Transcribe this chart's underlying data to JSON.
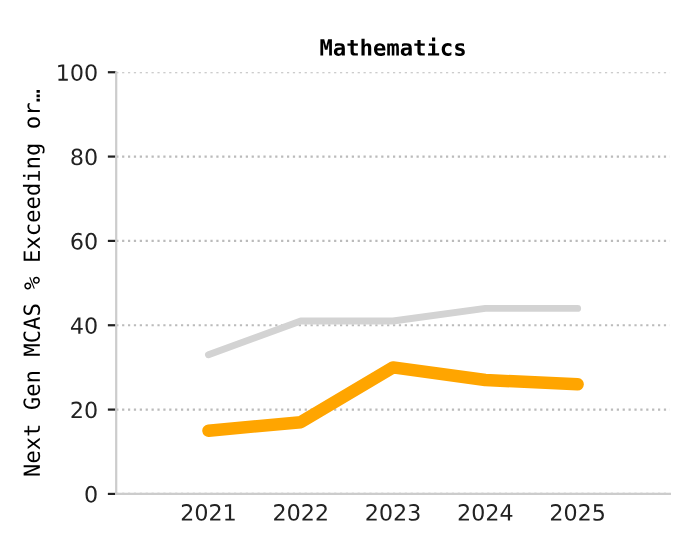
{
  "chart_data": {
    "type": "line",
    "title": "Mathematics",
    "ylabel": "Next Gen MCAS % Exceeding or…",
    "categories": [
      "2021",
      "2022",
      "2023",
      "2024",
      "2025"
    ],
    "series": [
      {
        "color": "#d3d3d3",
        "values": [
          33,
          41,
          41,
          44,
          44
        ]
      },
      {
        "color": "#ffa500",
        "values": [
          15,
          17,
          30,
          27,
          26
        ]
      }
    ],
    "ylim": [
      0,
      100
    ],
    "yticks": [
      0,
      20,
      40,
      60,
      80,
      100
    ],
    "grid": "y",
    "legend": false,
    "marker": "none",
    "line_style": "solid"
  }
}
